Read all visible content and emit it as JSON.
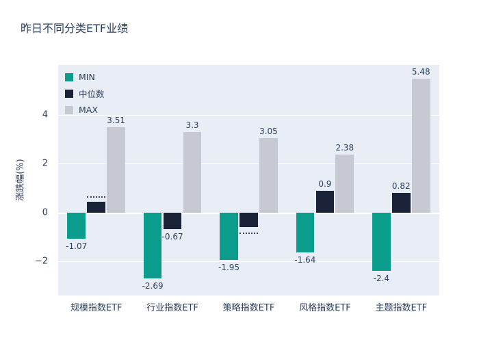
{
  "chart_data": {
    "type": "bar",
    "title": "昨日不同分类ETF业绩",
    "xlabel": "",
    "ylabel": "涨跌幅(%)",
    "categories": [
      "规模指数ETF",
      "行业指数ETF",
      "策略指数ETF",
      "风格指数ETF",
      "主题指数ETF"
    ],
    "series": [
      {
        "name": "MIN",
        "color": "#0b9d8c",
        "values": [
          -1.07,
          -2.69,
          -1.95,
          -1.64,
          -2.4
        ],
        "labels": [
          "-1.07",
          "-2.69",
          "-1.95",
          "-1.64",
          "-2.4"
        ],
        "label_masks": [
          false,
          false,
          false,
          false,
          false
        ]
      },
      {
        "name": "中位数",
        "color": "#1a2238",
        "values": [
          0.45,
          -0.67,
          -0.6,
          0.9,
          0.82
        ],
        "labels": [
          "",
          "-0.67",
          "",
          "0.9",
          "0.82"
        ],
        "label_masks": [
          true,
          false,
          true,
          false,
          false
        ]
      },
      {
        "name": "MAX",
        "color": "#c6c9d1",
        "values": [
          3.51,
          3.3,
          3.05,
          2.38,
          5.48
        ],
        "labels": [
          "3.51",
          "3.3",
          "3.05",
          "2.38",
          "5.48"
        ],
        "label_masks": [
          false,
          false,
          false,
          false,
          false
        ]
      }
    ],
    "yticks": [
      -2,
      0,
      2,
      4
    ],
    "ytick_labels": [
      "−2",
      "0",
      "2",
      "4"
    ],
    "ylim": [
      -3.4,
      6.05
    ],
    "legend": [
      "MIN",
      "中位数",
      "MAX"
    ],
    "legend_position": "top-left-inside",
    "grid": true,
    "plot_bg_color": "#e9edf5",
    "font_color": "#2a3f5f"
  }
}
